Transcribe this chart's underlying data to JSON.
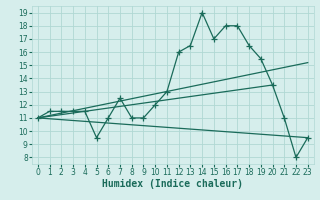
{
  "xlabel": "Humidex (Indice chaleur)",
  "bg_color": "#d6eeec",
  "line_color": "#1a6b5a",
  "grid_color": "#b0d8d4",
  "xlim": [
    -0.5,
    23.5
  ],
  "ylim": [
    7.5,
    19.5
  ],
  "xticks": [
    0,
    1,
    2,
    3,
    4,
    5,
    6,
    7,
    8,
    9,
    10,
    11,
    12,
    13,
    14,
    15,
    16,
    17,
    18,
    19,
    20,
    21,
    22,
    23
  ],
  "yticks": [
    8,
    9,
    10,
    11,
    12,
    13,
    14,
    15,
    16,
    17,
    18,
    19
  ],
  "main_x": [
    0,
    1,
    2,
    3,
    4,
    5,
    6,
    7,
    8,
    9,
    10,
    11,
    12,
    13,
    14,
    15,
    16,
    17,
    18,
    19,
    20,
    21,
    22,
    23
  ],
  "main_y": [
    11,
    11.5,
    11.5,
    11.5,
    11.5,
    9.5,
    11,
    12.5,
    11,
    11,
    12,
    13,
    16,
    16.5,
    19,
    17,
    18,
    18,
    16.5,
    15.5,
    13.5,
    11,
    8,
    9.5
  ],
  "line1_x": [
    0,
    23
  ],
  "line1_y": [
    11,
    15.2
  ],
  "line2_x": [
    0,
    20
  ],
  "line2_y": [
    11,
    13.5
  ],
  "line3_x": [
    0,
    23
  ],
  "line3_y": [
    11,
    9.5
  ],
  "marker_style": "+",
  "marker_size": 4,
  "linewidth": 0.9,
  "tick_fontsize": 5.5,
  "xlabel_fontsize": 7.0
}
